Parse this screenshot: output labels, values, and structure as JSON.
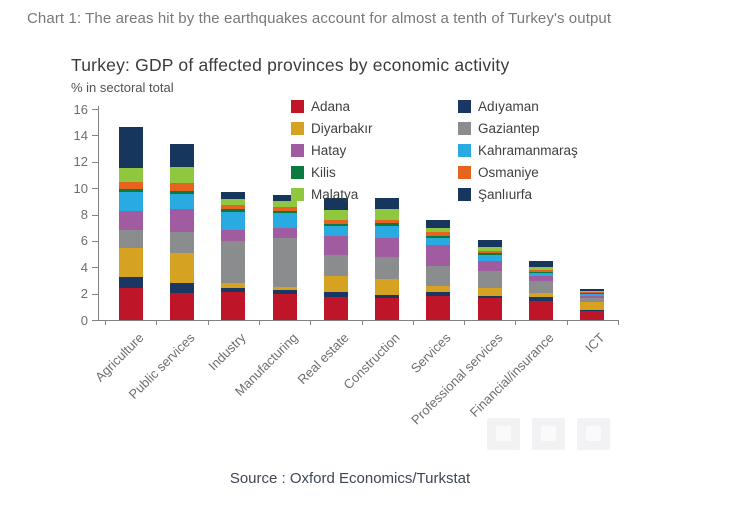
{
  "page": {
    "header": "Chart 1: The areas hit by the earthquakes account for almost a tenth of Turkey's output",
    "source": "Source : Oxford Economics/Turkstat"
  },
  "chart_data": {
    "type": "bar",
    "stacked": true,
    "title": "Turkey: GDP of affected provinces by economic activity",
    "subtitle": "% in sectoral total",
    "ylabel": "% in sectoral total",
    "ylim": [
      0,
      16
    ],
    "ytick_step": 2,
    "grid": false,
    "legend_position": "top-right inside plot, two columns",
    "categories": [
      "Agriculture",
      "Public services",
      "Industry",
      "Manufacturing",
      "Real estate",
      "Construction",
      "Services",
      "Professional services",
      "Financial/insurance",
      "ICT"
    ],
    "totals": [
      14.65,
      13.35,
      9.7,
      9.45,
      9.25,
      9.25,
      7.55,
      6.1,
      4.45,
      2.35
    ],
    "series": [
      {
        "name": "Adana",
        "color": "#be1628",
        "values": [
          2.45,
          2.05,
          2.1,
          2.0,
          1.75,
          1.7,
          1.85,
          1.65,
          1.45,
          0.7
        ]
      },
      {
        "name": "Adıyaman",
        "color": "#1a3763",
        "values": [
          0.8,
          0.75,
          0.3,
          0.25,
          0.35,
          0.2,
          0.25,
          0.2,
          0.3,
          0.08
        ]
      },
      {
        "name": "Diyarbakır",
        "color": "#d5a221",
        "values": [
          2.2,
          2.3,
          0.4,
          0.25,
          1.2,
          1.2,
          0.5,
          0.55,
          0.3,
          0.55
        ]
      },
      {
        "name": "Gaziantep",
        "color": "#8a8c8e",
        "values": [
          1.4,
          1.6,
          3.2,
          3.75,
          1.65,
          1.65,
          1.5,
          1.35,
          0.9,
          0.37
        ]
      },
      {
        "name": "Hatay",
        "color": "#a15ba0",
        "values": [
          1.4,
          1.7,
          0.8,
          0.7,
          1.4,
          1.45,
          1.6,
          0.75,
          0.35,
          0.1
        ]
      },
      {
        "name": "Kahramanmaraş",
        "color": "#29aae1",
        "values": [
          1.45,
          1.15,
          1.4,
          1.2,
          0.75,
          0.95,
          0.5,
          0.4,
          0.25,
          0.17
        ]
      },
      {
        "name": "Kilis",
        "color": "#0a7a40",
        "values": [
          0.25,
          0.25,
          0.18,
          0.15,
          0.17,
          0.2,
          0.18,
          0.15,
          0.1,
          0.05
        ]
      },
      {
        "name": "Osmaniye",
        "color": "#e5641f",
        "values": [
          0.55,
          0.6,
          0.33,
          0.3,
          0.33,
          0.2,
          0.28,
          0.18,
          0.15,
          0.08
        ]
      },
      {
        "name": "Malatya",
        "color": "#8fc73e",
        "values": [
          1.05,
          1.2,
          0.43,
          0.45,
          0.76,
          0.85,
          0.35,
          0.3,
          0.25,
          0.1
        ]
      },
      {
        "name": "Şanlıurfa",
        "color": "#16365d",
        "values": [
          3.1,
          1.75,
          0.55,
          0.4,
          0.9,
          0.85,
          0.55,
          0.55,
          0.4,
          0.15
        ]
      }
    ]
  },
  "colors": {
    "header_text": "#77787b",
    "title_text": "#3b3b3d",
    "axis_text": "#6d6e71",
    "legend_text": "#3f4042",
    "axis_line": "#808285",
    "source_text": "#3f4654",
    "ghost_button": "#f2f2f4"
  }
}
